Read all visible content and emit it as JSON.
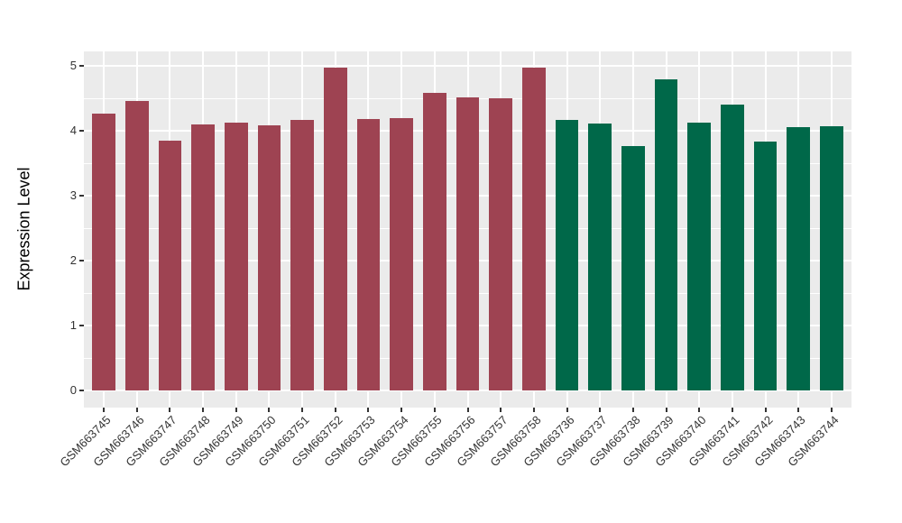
{
  "chart_data": {
    "type": "bar",
    "title": "",
    "xlabel": "",
    "ylabel": "Expression Level",
    "categories": [
      "GSM663745",
      "GSM663746",
      "GSM663747",
      "GSM663748",
      "GSM663749",
      "GSM663750",
      "GSM663751",
      "GSM663752",
      "GSM663753",
      "GSM663754",
      "GSM663755",
      "GSM663756",
      "GSM663757",
      "GSM663758",
      "GSM663736",
      "GSM663737",
      "GSM663738",
      "GSM663739",
      "GSM663740",
      "GSM663741",
      "GSM663742",
      "GSM663743",
      "GSM663744"
    ],
    "values": [
      4.27,
      4.46,
      3.85,
      4.1,
      4.12,
      4.08,
      4.17,
      4.97,
      4.18,
      4.2,
      4.58,
      4.52,
      4.5,
      4.97,
      4.17,
      4.11,
      3.77,
      4.79,
      4.13,
      4.4,
      3.84,
      4.05,
      4.07
    ],
    "bar_groups": [
      {
        "color": "#9E4352",
        "count": 14
      },
      {
        "color": "#006849",
        "count": 9
      }
    ],
    "yticks": [
      0,
      1,
      2,
      3,
      4,
      5
    ],
    "ylim": [
      -0.26,
      5.22
    ],
    "grid": "on",
    "legend": "none",
    "panel_background": "#EBEBEB",
    "grid_color": "#FFFFFF",
    "tick_color": "#333333"
  }
}
